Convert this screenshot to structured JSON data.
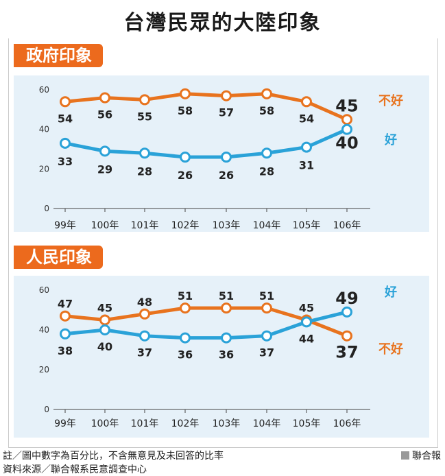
{
  "title": "台灣民眾的大陸印象",
  "colors": {
    "bad": "#e8731e",
    "good": "#2aa2d8",
    "badge": "#ec6a1d",
    "panel": "#e6f1f9"
  },
  "chart_data": [
    {
      "type": "line",
      "title": "政府印象",
      "categories": [
        "99年",
        "100年",
        "101年",
        "102年",
        "103年",
        "104年",
        "105年",
        "106年"
      ],
      "ylim": [
        0,
        60
      ],
      "yticks": [
        "0",
        "20",
        "40",
        "60"
      ],
      "series": [
        {
          "name": "不好",
          "values": [
            54,
            56,
            55,
            58,
            57,
            58,
            54,
            45
          ]
        },
        {
          "name": "好",
          "values": [
            33,
            29,
            28,
            26,
            26,
            28,
            31,
            40
          ]
        }
      ]
    },
    {
      "type": "line",
      "title": "人民印象",
      "categories": [
        "99年",
        "100年",
        "101年",
        "102年",
        "103年",
        "104年",
        "105年",
        "106年"
      ],
      "ylim": [
        0,
        60
      ],
      "yticks": [
        "0",
        "20",
        "40",
        "60"
      ],
      "series": [
        {
          "name": "不好",
          "values": [
            47,
            45,
            48,
            51,
            51,
            51,
            45,
            37
          ]
        },
        {
          "name": "好",
          "values": [
            38,
            40,
            37,
            36,
            36,
            37,
            44,
            49
          ]
        }
      ]
    }
  ],
  "footer": {
    "note1": "註／圖中數字為百分比，不含無意見及未回答的比率",
    "note2": "資料來源／聯合報系民意調查中心",
    "credit": "聯合報"
  }
}
